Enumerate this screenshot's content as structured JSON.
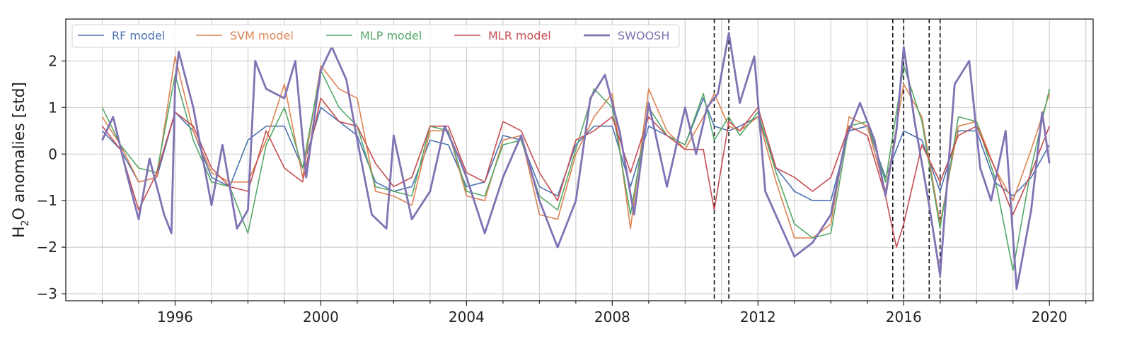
{
  "chart_data": {
    "type": "line",
    "title": "",
    "xlabel": "",
    "ylabel": {
      "main": "H",
      "sub": "2",
      "rest": "O anomalies [std]"
    },
    "xlim": [
      1993.0,
      2021.2
    ],
    "ylim": [
      -3.15,
      2.9
    ],
    "xticks": [
      1996,
      2000,
      2004,
      2008,
      2012,
      2016,
      2020
    ],
    "yticks": [
      -3,
      -2,
      -1,
      0,
      1,
      2
    ],
    "ytick_labels": [
      "−3",
      "−2",
      "−1",
      "0",
      "1",
      "2"
    ],
    "grid": true,
    "legend_position": "top-left",
    "vlines": [
      2010.8,
      2011.2,
      2015.7,
      2016.0,
      2016.7,
      2017.0
    ],
    "series": [
      {
        "name": "RF model",
        "color": "#4c72b0",
        "width": 1.6,
        "points": [
          [
            1994.0,
            0.5
          ],
          [
            1994.5,
            0.1
          ],
          [
            1995.0,
            -0.6
          ],
          [
            1995.5,
            -0.5
          ],
          [
            1996.0,
            0.9
          ],
          [
            1996.5,
            0.5
          ],
          [
            1997.0,
            -0.5
          ],
          [
            1997.5,
            -0.7
          ],
          [
            1998.0,
            0.3
          ],
          [
            1998.5,
            0.6
          ],
          [
            1999.0,
            0.6
          ],
          [
            1999.5,
            -0.3
          ],
          [
            2000.0,
            1.0
          ],
          [
            2000.5,
            0.7
          ],
          [
            2001.0,
            0.4
          ],
          [
            2001.5,
            -0.6
          ],
          [
            2002.0,
            -0.8
          ],
          [
            2002.5,
            -0.7
          ],
          [
            2003.0,
            0.3
          ],
          [
            2003.5,
            0.2
          ],
          [
            2004.0,
            -0.7
          ],
          [
            2004.5,
            -0.6
          ],
          [
            2005.0,
            0.4
          ],
          [
            2005.5,
            0.3
          ],
          [
            2006.0,
            -0.7
          ],
          [
            2006.5,
            -0.9
          ],
          [
            2007.0,
            0.2
          ],
          [
            2007.5,
            0.6
          ],
          [
            2008.0,
            0.6
          ],
          [
            2008.5,
            -0.7
          ],
          [
            2009.0,
            0.6
          ],
          [
            2009.5,
            0.4
          ],
          [
            2010.0,
            0.2
          ],
          [
            2010.5,
            1.2
          ],
          [
            2010.8,
            0.6
          ],
          [
            2011.2,
            0.5
          ],
          [
            2011.5,
            0.6
          ],
          [
            2012.0,
            0.8
          ],
          [
            2012.5,
            -0.3
          ],
          [
            2013.0,
            -0.8
          ],
          [
            2013.5,
            -1.0
          ],
          [
            2014.0,
            -1.0
          ],
          [
            2014.5,
            0.5
          ],
          [
            2015.0,
            0.6
          ],
          [
            2015.5,
            -0.5
          ],
          [
            2016.0,
            0.5
          ],
          [
            2016.5,
            0.3
          ],
          [
            2017.0,
            -0.8
          ],
          [
            2017.5,
            0.5
          ],
          [
            2018.0,
            0.5
          ],
          [
            2018.5,
            -0.6
          ],
          [
            2019.0,
            -0.9
          ],
          [
            2019.5,
            -0.5
          ],
          [
            2020.0,
            0.2
          ]
        ]
      },
      {
        "name": "SVM model",
        "color": "#dd8452",
        "width": 1.6,
        "points": [
          [
            1994.0,
            0.8
          ],
          [
            1994.5,
            0.2
          ],
          [
            1995.0,
            -0.6
          ],
          [
            1995.5,
            -0.5
          ],
          [
            1996.0,
            2.1
          ],
          [
            1996.5,
            0.5
          ],
          [
            1997.0,
            -0.4
          ],
          [
            1997.5,
            -0.6
          ],
          [
            1998.0,
            -0.6
          ],
          [
            1998.5,
            0.3
          ],
          [
            1999.0,
            1.5
          ],
          [
            1999.5,
            -0.5
          ],
          [
            2000.0,
            1.9
          ],
          [
            2000.5,
            1.4
          ],
          [
            2001.0,
            1.2
          ],
          [
            2001.5,
            -0.8
          ],
          [
            2002.0,
            -0.9
          ],
          [
            2002.5,
            -1.1
          ],
          [
            2003.0,
            0.5
          ],
          [
            2003.5,
            0.5
          ],
          [
            2004.0,
            -0.9
          ],
          [
            2004.5,
            -1.0
          ],
          [
            2005.0,
            0.3
          ],
          [
            2005.5,
            0.4
          ],
          [
            2006.0,
            -1.3
          ],
          [
            2006.5,
            -1.4
          ],
          [
            2007.0,
            0.0
          ],
          [
            2007.5,
            0.8
          ],
          [
            2008.0,
            1.3
          ],
          [
            2008.5,
            -1.6
          ],
          [
            2009.0,
            1.4
          ],
          [
            2009.5,
            0.5
          ],
          [
            2010.0,
            0.1
          ],
          [
            2010.5,
            0.8
          ],
          [
            2010.8,
            1.3
          ],
          [
            2011.2,
            0.6
          ],
          [
            2011.5,
            0.5
          ],
          [
            2012.0,
            0.8
          ],
          [
            2012.5,
            -0.6
          ],
          [
            2013.0,
            -1.8
          ],
          [
            2013.5,
            -1.8
          ],
          [
            2014.0,
            -1.5
          ],
          [
            2014.5,
            0.8
          ],
          [
            2015.0,
            0.6
          ],
          [
            2015.5,
            -0.8
          ],
          [
            2016.0,
            1.5
          ],
          [
            2016.5,
            0.8
          ],
          [
            2017.0,
            -1.5
          ],
          [
            2017.5,
            0.6
          ],
          [
            2018.0,
            0.7
          ],
          [
            2018.5,
            -0.3
          ],
          [
            2019.0,
            -1.0
          ],
          [
            2019.5,
            0.1
          ],
          [
            2020.0,
            1.3
          ]
        ]
      },
      {
        "name": "MLP model",
        "color": "#55a868",
        "width": 1.6,
        "points": [
          [
            1994.0,
            1.0
          ],
          [
            1994.5,
            0.2
          ],
          [
            1995.0,
            -0.3
          ],
          [
            1995.5,
            -0.4
          ],
          [
            1996.0,
            1.7
          ],
          [
            1996.5,
            0.3
          ],
          [
            1997.0,
            -0.6
          ],
          [
            1997.5,
            -0.7
          ],
          [
            1998.0,
            -1.7
          ],
          [
            1998.5,
            0.2
          ],
          [
            1999.0,
            1.0
          ],
          [
            1999.5,
            -0.3
          ],
          [
            2000.0,
            1.8
          ],
          [
            2000.5,
            1.0
          ],
          [
            2001.0,
            0.6
          ],
          [
            2001.5,
            -0.7
          ],
          [
            2002.0,
            -0.8
          ],
          [
            2002.5,
            -0.9
          ],
          [
            2003.0,
            0.6
          ],
          [
            2003.5,
            0.5
          ],
          [
            2004.0,
            -0.8
          ],
          [
            2004.5,
            -0.9
          ],
          [
            2005.0,
            0.2
          ],
          [
            2005.5,
            0.3
          ],
          [
            2006.0,
            -0.9
          ],
          [
            2006.5,
            -1.2
          ],
          [
            2007.0,
            0.1
          ],
          [
            2007.5,
            1.4
          ],
          [
            2008.0,
            1.0
          ],
          [
            2008.5,
            -1.3
          ],
          [
            2009.0,
            1.0
          ],
          [
            2009.5,
            0.4
          ],
          [
            2010.0,
            0.2
          ],
          [
            2010.5,
            1.3
          ],
          [
            2010.8,
            0.3
          ],
          [
            2011.2,
            0.8
          ],
          [
            2011.5,
            0.4
          ],
          [
            2012.0,
            0.9
          ],
          [
            2012.5,
            -0.4
          ],
          [
            2013.0,
            -1.5
          ],
          [
            2013.5,
            -1.8
          ],
          [
            2014.0,
            -1.7
          ],
          [
            2014.5,
            0.6
          ],
          [
            2015.0,
            0.7
          ],
          [
            2015.5,
            -0.6
          ],
          [
            2016.0,
            1.9
          ],
          [
            2016.5,
            0.7
          ],
          [
            2017.0,
            -1.6
          ],
          [
            2017.5,
            0.8
          ],
          [
            2018.0,
            0.7
          ],
          [
            2018.5,
            -0.5
          ],
          [
            2019.0,
            -2.5
          ],
          [
            2019.5,
            -0.3
          ],
          [
            2020.0,
            1.4
          ]
        ]
      },
      {
        "name": "MLR model",
        "color": "#c44e52",
        "width": 1.6,
        "points": [
          [
            1994.0,
            0.6
          ],
          [
            1994.5,
            0.1
          ],
          [
            1995.0,
            -1.2
          ],
          [
            1995.5,
            -0.4
          ],
          [
            1996.0,
            0.9
          ],
          [
            1996.5,
            0.6
          ],
          [
            1997.0,
            -0.3
          ],
          [
            1997.5,
            -0.7
          ],
          [
            1998.0,
            -0.8
          ],
          [
            1998.5,
            0.5
          ],
          [
            1999.0,
            -0.3
          ],
          [
            1999.5,
            -0.6
          ],
          [
            2000.0,
            1.2
          ],
          [
            2000.5,
            0.7
          ],
          [
            2001.0,
            0.6
          ],
          [
            2001.5,
            -0.2
          ],
          [
            2002.0,
            -0.7
          ],
          [
            2002.5,
            -0.5
          ],
          [
            2003.0,
            0.6
          ],
          [
            2003.5,
            0.6
          ],
          [
            2004.0,
            -0.4
          ],
          [
            2004.5,
            -0.6
          ],
          [
            2005.0,
            0.7
          ],
          [
            2005.5,
            0.5
          ],
          [
            2006.0,
            -0.4
          ],
          [
            2006.5,
            -1.0
          ],
          [
            2007.0,
            0.3
          ],
          [
            2007.5,
            0.5
          ],
          [
            2008.0,
            0.8
          ],
          [
            2008.5,
            -0.4
          ],
          [
            2009.0,
            0.8
          ],
          [
            2009.5,
            0.4
          ],
          [
            2010.0,
            0.1
          ],
          [
            2010.5,
            0.1
          ],
          [
            2010.8,
            -1.2
          ],
          [
            2011.2,
            0.7
          ],
          [
            2011.5,
            0.5
          ],
          [
            2012.0,
            1.0
          ],
          [
            2012.5,
            -0.3
          ],
          [
            2013.0,
            -0.5
          ],
          [
            2013.5,
            -0.8
          ],
          [
            2014.0,
            -0.5
          ],
          [
            2014.5,
            0.6
          ],
          [
            2015.0,
            0.4
          ],
          [
            2015.5,
            -0.9
          ],
          [
            2015.8,
            -2.0
          ],
          [
            2016.0,
            -1.5
          ],
          [
            2016.5,
            0.2
          ],
          [
            2017.0,
            -0.6
          ],
          [
            2017.5,
            0.4
          ],
          [
            2018.0,
            0.6
          ],
          [
            2018.5,
            -0.3
          ],
          [
            2019.0,
            -1.3
          ],
          [
            2019.5,
            -0.4
          ],
          [
            2020.0,
            0.6
          ]
        ]
      },
      {
        "name": "SWOOSH",
        "color": "#8172b3",
        "width": 2.8,
        "points": [
          [
            1994.0,
            0.3
          ],
          [
            1994.3,
            0.8
          ],
          [
            1994.7,
            -0.5
          ],
          [
            1995.0,
            -1.4
          ],
          [
            1995.3,
            -0.1
          ],
          [
            1995.7,
            -1.3
          ],
          [
            1995.9,
            -1.7
          ],
          [
            1996.0,
            1.5
          ],
          [
            1996.1,
            2.2
          ],
          [
            1996.5,
            1.0
          ],
          [
            1997.0,
            -1.1
          ],
          [
            1997.3,
            0.2
          ],
          [
            1997.7,
            -1.6
          ],
          [
            1998.0,
            -1.2
          ],
          [
            1998.2,
            2.0
          ],
          [
            1998.5,
            1.4
          ],
          [
            1999.0,
            1.2
          ],
          [
            1999.3,
            2.0
          ],
          [
            1999.6,
            -0.5
          ],
          [
            2000.0,
            1.8
          ],
          [
            2000.3,
            2.3
          ],
          [
            2000.7,
            1.6
          ],
          [
            2001.0,
            0.3
          ],
          [
            2001.4,
            -1.3
          ],
          [
            2001.8,
            -1.6
          ],
          [
            2002.0,
            0.4
          ],
          [
            2002.5,
            -1.4
          ],
          [
            2003.0,
            -0.8
          ],
          [
            2003.4,
            0.6
          ],
          [
            2003.8,
            -0.1
          ],
          [
            2004.0,
            -0.5
          ],
          [
            2004.5,
            -1.7
          ],
          [
            2005.0,
            -0.5
          ],
          [
            2005.5,
            0.4
          ],
          [
            2006.0,
            -1.0
          ],
          [
            2006.5,
            -2.0
          ],
          [
            2007.0,
            -1.0
          ],
          [
            2007.4,
            1.2
          ],
          [
            2007.8,
            1.7
          ],
          [
            2008.2,
            0.5
          ],
          [
            2008.6,
            -1.3
          ],
          [
            2009.0,
            1.1
          ],
          [
            2009.5,
            -0.7
          ],
          [
            2010.0,
            1.0
          ],
          [
            2010.3,
            0.0
          ],
          [
            2010.6,
            1.0
          ],
          [
            2010.9,
            1.3
          ],
          [
            2011.2,
            2.6
          ],
          [
            2011.5,
            1.1
          ],
          [
            2011.9,
            2.1
          ],
          [
            2012.2,
            -0.8
          ],
          [
            2012.6,
            -1.5
          ],
          [
            2013.0,
            -2.2
          ],
          [
            2013.5,
            -1.9
          ],
          [
            2014.0,
            -1.3
          ],
          [
            2014.4,
            0.3
          ],
          [
            2014.8,
            1.1
          ],
          [
            2015.2,
            0.3
          ],
          [
            2015.5,
            -0.9
          ],
          [
            2015.8,
            0.5
          ],
          [
            2016.0,
            2.3
          ],
          [
            2016.3,
            0.7
          ],
          [
            2016.7,
            -1.1
          ],
          [
            2017.0,
            -2.6
          ],
          [
            2017.4,
            1.5
          ],
          [
            2017.8,
            2.0
          ],
          [
            2018.1,
            -0.3
          ],
          [
            2018.4,
            -1.0
          ],
          [
            2018.8,
            0.5
          ],
          [
            2019.1,
            -2.9
          ],
          [
            2019.5,
            -1.2
          ],
          [
            2019.8,
            0.9
          ],
          [
            2020.0,
            -0.2
          ]
        ]
      }
    ]
  }
}
